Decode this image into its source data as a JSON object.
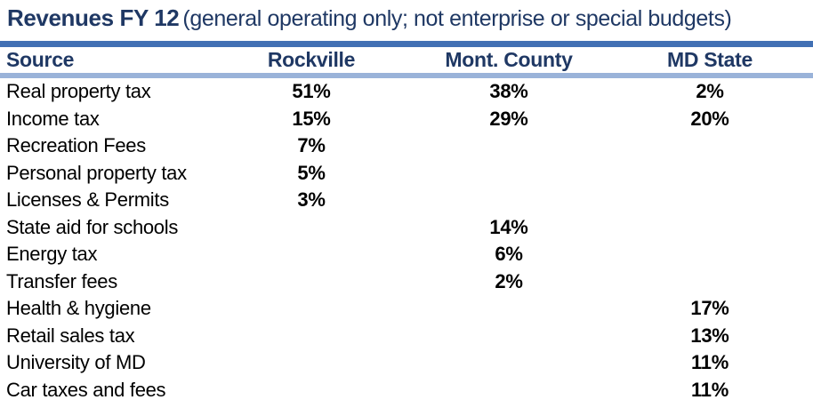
{
  "title": {
    "main": "Revenues FY 12",
    "subtitle": "(general operating only; not enterprise or special budgets)"
  },
  "chart_data": {
    "type": "table",
    "title": "Revenues FY 12 (general operating only; not enterprise or special budgets)",
    "columns": [
      "Source",
      "Rockville",
      "Mont. County",
      "MD State"
    ],
    "rows": [
      [
        "Real property tax",
        "51%",
        "38%",
        "2%"
      ],
      [
        "Income tax",
        "15%",
        "29%",
        "20%"
      ],
      [
        "Recreation Fees",
        "7%",
        "",
        ""
      ],
      [
        "Personal property tax",
        "5%",
        "",
        ""
      ],
      [
        "Licenses & Permits",
        "3%",
        "",
        ""
      ],
      [
        "State aid for schools",
        "",
        "14%",
        ""
      ],
      [
        "Energy tax",
        "",
        "6%",
        ""
      ],
      [
        "Transfer fees",
        "",
        "2%",
        ""
      ],
      [
        "Health & hygiene",
        "",
        "",
        "17%"
      ],
      [
        "Retail sales tax",
        "",
        "",
        "13%"
      ],
      [
        "University of MD",
        "",
        "",
        "11%"
      ],
      [
        "Car taxes and fees",
        "",
        "",
        "11%"
      ]
    ]
  },
  "colors": {
    "title_navy": "#1F3864",
    "rule_dark_blue": "#4170B4",
    "rule_light_blue": "#9AB3D9",
    "body_text": "#000000"
  }
}
